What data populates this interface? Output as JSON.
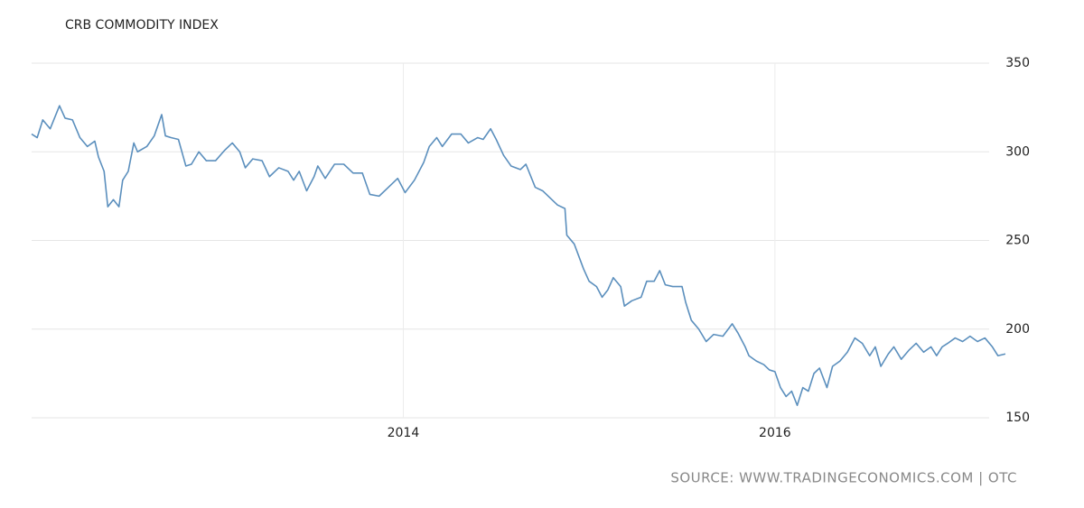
{
  "chart_data": {
    "type": "line",
    "title": "CRB COMMODITY INDEX",
    "source": "SOURCE: WWW.TRADINGECONOMICS.COM | OTC",
    "x": [
      2012.0,
      2012.03,
      2012.06,
      2012.1,
      2012.15,
      2012.18,
      2012.22,
      2012.26,
      2012.3,
      2012.34,
      2012.36,
      2012.39,
      2012.41,
      2012.44,
      2012.47,
      2012.49,
      2012.52,
      2012.55,
      2012.57,
      2012.62,
      2012.66,
      2012.7,
      2012.72,
      2012.75,
      2012.79,
      2012.83,
      2012.86,
      2012.9,
      2012.94,
      2012.99,
      2013.04,
      2013.08,
      2013.12,
      2013.15,
      2013.19,
      2013.24,
      2013.28,
      2013.33,
      2013.38,
      2013.41,
      2013.44,
      2013.48,
      2013.52,
      2013.54,
      2013.58,
      2013.63,
      2013.68,
      2013.73,
      2013.78,
      2013.82,
      2013.87,
      2013.92,
      2013.97,
      2014.01,
      2014.06,
      2014.11,
      2014.14,
      2014.18,
      2014.21,
      2014.26,
      2014.31,
      2014.35,
      2014.4,
      2014.43,
      2014.47,
      2014.5,
      2014.54,
      2014.58,
      2014.63,
      2014.66,
      2014.71,
      2014.75,
      2014.8,
      2014.83,
      2014.87,
      2014.88,
      2014.92,
      2014.97,
      2015.0,
      2015.04,
      2015.07,
      2015.1,
      2015.13,
      2015.17,
      2015.19,
      2015.23,
      2015.28,
      2015.31,
      2015.35,
      2015.38,
      2015.41,
      2015.45,
      2015.5,
      2015.52,
      2015.55,
      2015.59,
      2015.63,
      2015.67,
      2015.72,
      2015.77,
      2015.8,
      2015.84,
      2015.86,
      2015.9,
      2015.94,
      2015.97,
      2016.0,
      2016.03,
      2016.06,
      2016.09,
      2016.12,
      2016.15,
      2016.18,
      2016.21,
      2016.24,
      2016.28,
      2016.31,
      2016.35,
      2016.39,
      2016.43,
      2016.47,
      2016.51,
      2016.54,
      2016.57,
      2016.61,
      2016.64,
      2016.68,
      2016.72,
      2016.76,
      2016.8,
      2016.84,
      2016.87,
      2016.9,
      2016.93,
      2016.97,
      2017.01,
      2017.05,
      2017.09,
      2017.13,
      2017.17,
      2017.2,
      2017.24
    ],
    "series": [
      {
        "color": "#5b8fbd",
        "values": [
          310,
          308,
          318,
          313,
          326,
          319,
          318,
          308,
          303,
          306,
          297,
          289,
          269,
          273,
          269,
          284,
          289,
          305,
          300,
          303,
          309,
          321,
          309,
          308,
          307,
          292,
          293,
          300,
          295,
          295,
          301,
          305,
          300,
          291,
          296,
          295,
          286,
          291,
          289,
          284,
          289,
          278,
          286,
          292,
          285,
          293,
          293,
          288,
          288,
          276,
          275,
          280,
          285,
          277,
          284,
          294,
          303,
          308,
          303,
          310,
          310,
          305,
          308,
          307,
          313,
          307,
          298,
          292,
          290,
          293,
          280,
          278,
          273,
          270,
          268,
          253,
          248,
          234,
          227,
          224,
          218,
          222,
          229,
          224,
          213,
          216,
          218,
          227,
          227,
          233,
          225,
          224,
          224,
          215,
          205,
          200,
          193,
          197,
          196,
          203,
          198,
          190,
          185,
          182,
          180,
          177,
          176,
          167,
          162,
          165,
          157,
          167,
          165,
          175,
          178,
          167,
          179,
          182,
          187,
          195,
          192,
          185,
          190,
          179,
          186,
          190,
          183,
          188,
          192,
          187,
          190,
          185,
          190,
          192,
          195,
          193,
          196,
          193,
          195,
          190,
          185,
          186
        ]
      }
    ],
    "xlim": [
      2012,
      2017.25
    ],
    "xticks": [
      2014,
      2016
    ],
    "ylim": [
      150,
      350
    ],
    "yticks": [
      150,
      200,
      250,
      300,
      350
    ],
    "grid": true
  }
}
